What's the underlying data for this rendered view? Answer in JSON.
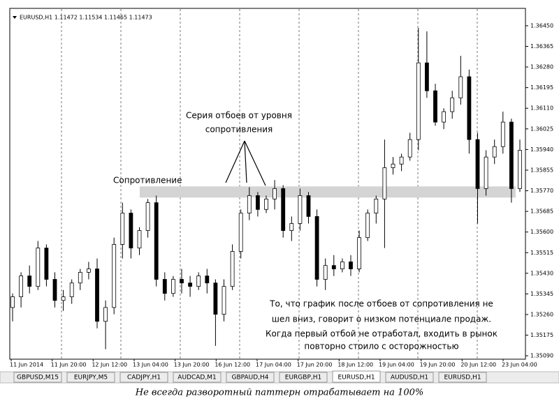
{
  "chart_data": {
    "type": "candlestick",
    "header": "EURUSD,H1  1.11472 1.11534 1.11465 1.11473",
    "ylim": [
      1.35076,
      1.36513
    ],
    "yticks": [
      {
        "value": 1.3645,
        "label": "1.36450"
      },
      {
        "value": 1.36365,
        "label": "1.36365"
      },
      {
        "value": 1.3628,
        "label": "1.36280"
      },
      {
        "value": 1.36195,
        "label": "1.36195"
      },
      {
        "value": 1.3611,
        "label": "1.36110"
      },
      {
        "value": 1.36025,
        "label": "1.36025"
      },
      {
        "value": 1.3594,
        "label": "1.35940"
      },
      {
        "value": 1.35855,
        "label": "1.35855"
      },
      {
        "value": 1.3577,
        "label": "1.35770"
      },
      {
        "value": 1.35685,
        "label": "1.35685"
      },
      {
        "value": 1.356,
        "label": "1.35600"
      },
      {
        "value": 1.35515,
        "label": "1.35515"
      },
      {
        "value": 1.3543,
        "label": "1.35430"
      },
      {
        "value": 1.35345,
        "label": "1.35345"
      },
      {
        "value": 1.3526,
        "label": "1.35260"
      },
      {
        "value": 1.35175,
        "label": "1.35175"
      },
      {
        "value": 1.3509,
        "label": "1.35090"
      }
    ],
    "x_labels": [
      "11 Jun 2014",
      "11 Jun 20:00",
      "12 Jun 12:00",
      "13 Jun 04:00",
      "13 Jun 20:00",
      "16 Jun 12:00",
      "17 Jun 04:00",
      "17 Jun 20:00",
      "18 Jun 12:00",
      "19 Jun 04:00",
      "19 Jun 20:00",
      "20 Jun 12:00",
      "23 Jun 04:00"
    ],
    "open": [
      1.35289,
      1.35333,
      1.35419,
      1.35376,
      1.35534,
      1.35405,
      1.35318,
      1.35333,
      1.3539,
      1.35434,
      1.35448,
      1.35232,
      1.35289,
      1.35549,
      1.35678,
      1.35534,
      1.35606,
      1.35721,
      1.35405,
      1.35347,
      1.35405,
      1.3539,
      1.35376,
      1.35419,
      1.3539,
      1.35261,
      1.35376,
      1.3552,
      1.35678,
      1.3575,
      1.35693,
      1.35736,
      1.35779,
      1.35606,
      1.35635,
      1.3575,
      1.35664,
      1.35405,
      1.35462,
      1.35448,
      1.35477,
      1.35448,
      1.35577,
      1.35678,
      1.35736,
      1.35865,
      1.3588,
      1.35909,
      1.35981,
      1.36297,
      1.36182,
      1.36053,
      1.36096,
      1.36153,
      1.3624,
      1.35981,
      1.35779,
      1.35909,
      1.35952,
      1.36053,
      1.35779
    ],
    "high": [
      1.35347,
      1.35434,
      1.35462,
      1.35563,
      1.35549,
      1.35434,
      1.35361,
      1.35405,
      1.35448,
      1.35477,
      1.35491,
      1.35318,
      1.35577,
      1.35721,
      1.35693,
      1.3562,
      1.35736,
      1.3575,
      1.35434,
      1.35419,
      1.35448,
      1.35419,
      1.35434,
      1.35448,
      1.35405,
      1.35405,
      1.35549,
      1.35693,
      1.35785,
      1.35765,
      1.3575,
      1.35814,
      1.35793,
      1.35664,
      1.35779,
      1.35765,
      1.35693,
      1.35491,
      1.35505,
      1.35491,
      1.35505,
      1.35606,
      1.35693,
      1.3575,
      1.35981,
      1.35909,
      1.35923,
      1.36009,
      1.36441,
      1.36427,
      1.36211,
      1.3611,
      1.36182,
      1.36326,
      1.36269,
      1.36009,
      1.35937,
      1.35981,
      1.36096,
      1.36067,
      1.35981
    ],
    "low": [
      1.35232,
      1.35289,
      1.35347,
      1.35361,
      1.35376,
      1.35289,
      1.35275,
      1.35304,
      1.35361,
      1.35405,
      1.35203,
      1.35117,
      1.35261,
      1.35491,
      1.35491,
      1.35505,
      1.35577,
      1.35376,
      1.35318,
      1.35333,
      1.35347,
      1.35333,
      1.35361,
      1.35347,
      1.35131,
      1.35232,
      1.35361,
      1.35491,
      1.35649,
      1.35664,
      1.35678,
      1.35693,
      1.35577,
      1.35563,
      1.35606,
      1.35635,
      1.35376,
      1.35361,
      1.35419,
      1.35434,
      1.35419,
      1.35434,
      1.35563,
      1.35635,
      1.35534,
      1.35837,
      1.35851,
      1.35894,
      1.35937,
      1.36153,
      1.36038,
      1.36024,
      1.36067,
      1.36125,
      1.35923,
      1.35635,
      1.3575,
      1.3588,
      1.35923,
      1.35721,
      1.35765
    ],
    "close": [
      1.35333,
      1.35419,
      1.35376,
      1.35534,
      1.35405,
      1.35318,
      1.35333,
      1.3539,
      1.35434,
      1.35448,
      1.35232,
      1.35289,
      1.35549,
      1.35678,
      1.35534,
      1.35606,
      1.35721,
      1.35405,
      1.35347,
      1.35405,
      1.3539,
      1.35376,
      1.35419,
      1.3539,
      1.35261,
      1.35376,
      1.3552,
      1.35678,
      1.3575,
      1.35693,
      1.35736,
      1.35779,
      1.35606,
      1.35635,
      1.3575,
      1.35664,
      1.35405,
      1.35462,
      1.35448,
      1.35477,
      1.35448,
      1.35577,
      1.35678,
      1.35736,
      1.35865,
      1.3588,
      1.35909,
      1.35981,
      1.36297,
      1.36182,
      1.36053,
      1.36096,
      1.36153,
      1.3624,
      1.35981,
      1.35779,
      1.35909,
      1.35952,
      1.36053,
      1.35779,
      1.35937
    ],
    "resistance_band": [
      1.35742,
      1.35788
    ],
    "annotations": {
      "resistance": "Сопротивление",
      "series": [
        "Серия отбоев от уровня",
        "сопротивления"
      ],
      "comment": [
        "То, что график после отбоев от сопротивления не",
        "шел вниз, говорит о низком потенциале продаж.",
        "Когда первый отбой не отработал, входить в рынок",
        "повторно стоило с осторожностью"
      ]
    }
  },
  "tabs": [
    "GBPUSD,M15",
    "EURJPY,M5",
    "CADJPY,H1",
    "AUDCAD,M1",
    "GBPAUD,H4",
    "EURGBP,H1",
    "EURUSD,H1",
    "AUDUSD,H1",
    "EURUSD,H1"
  ],
  "active_tab": 6,
  "caption": "Не всегда разворотный паттерн отрабатывает на 100%"
}
